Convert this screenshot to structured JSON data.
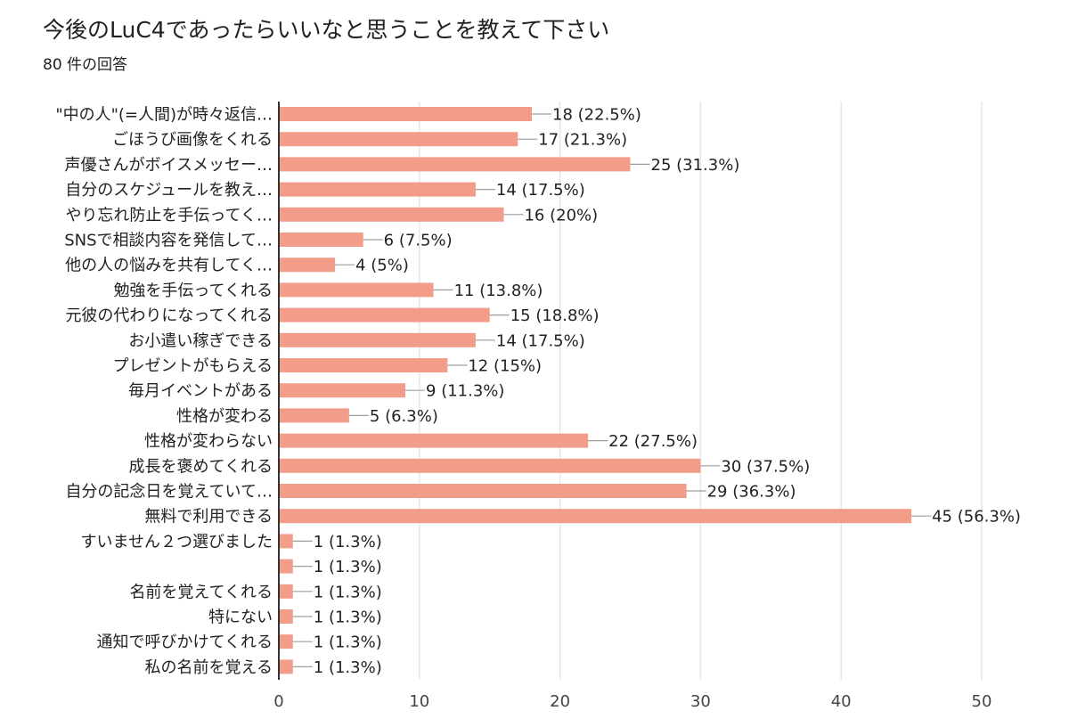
{
  "page": {
    "title": "今後のLuC4であったらいいなと思うことを教えて下さい",
    "subtitle": "80 件の回答"
  },
  "colors": {
    "bar": "#f29c8a",
    "grid": "#e6e6e6",
    "axis": "#333333",
    "text": "#222222"
  },
  "chart_data": {
    "type": "bar",
    "orientation": "horizontal",
    "title": "今後のLuC4であったらいいなと思うことを教えて下さい",
    "subtitle": "80 件の回答",
    "categories": [
      "\"中の人\"(=人間)が時々返信…",
      "ごほうび画像をくれる",
      "声優さんがボイスメッセー…",
      "自分のスケジュールを教え…",
      "やり忘れ防止を手伝ってく…",
      "SNSで相談内容を発信して…",
      "他の人の悩みを共有してく…",
      "勉強を手伝ってくれる",
      "元彼の代わりになってくれる",
      "お小遣い稼ぎできる",
      "プレゼントがもらえる",
      "毎月イベントがある",
      "性格が変わる",
      "性格が変わらない",
      "成長を褒めてくれる",
      "自分の記念日を覚えていて…",
      "無料で利用できる",
      "すいません２つ選びました",
      "",
      "名前を覚えてくれる",
      "特にない",
      "通知で呼びかけてくれる",
      "私の名前を覚える"
    ],
    "values": [
      18,
      17,
      25,
      14,
      16,
      6,
      4,
      11,
      15,
      14,
      12,
      9,
      5,
      22,
      30,
      29,
      45,
      1,
      1,
      1,
      1,
      1,
      1
    ],
    "value_labels": [
      "18 (22.5%)",
      "17 (21.3%)",
      "25 (31.3%)",
      "14 (17.5%)",
      "16 (20%)",
      "6 (7.5%)",
      "4 (5%)",
      "11 (13.8%)",
      "15 (18.8%)",
      "14 (17.5%)",
      "12 (15%)",
      "9 (11.3%)",
      "5 (6.3%)",
      "22 (27.5%)",
      "30 (37.5%)",
      "29 (36.3%)",
      "45 (56.3%)",
      "1 (1.3%)",
      "1 (1.3%)",
      "1 (1.3%)",
      "1 (1.3%)",
      "1 (1.3%)",
      "1 (1.3%)"
    ],
    "x_ticks": [
      0,
      10,
      20,
      30,
      40,
      50
    ],
    "xlim": [
      0,
      50
    ],
    "xlabel": "",
    "ylabel": "",
    "grid": true,
    "legend": "none"
  }
}
